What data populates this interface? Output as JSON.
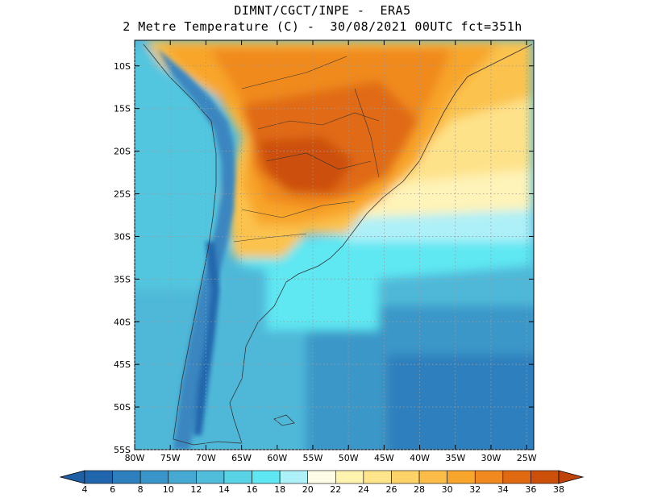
{
  "title_line1": "DIMNT/CGCT/INPE -  ERA5",
  "title_line2": "2 Metre Temperature (C) -  30/08/2021 00UTC fct=351h",
  "map": {
    "lat_labels": [
      "10S",
      "15S",
      "20S",
      "25S",
      "30S",
      "35S",
      "40S",
      "45S",
      "50S",
      "55S"
    ],
    "lat_values": [
      -10,
      -15,
      -20,
      -25,
      -30,
      -35,
      -40,
      -45,
      -50,
      -55
    ],
    "lon_labels": [
      "80W",
      "75W",
      "70W",
      "65W",
      "60W",
      "55W",
      "50W",
      "45W",
      "40W",
      "35W",
      "30W",
      "25W"
    ],
    "lon_values": [
      -80,
      -75,
      -70,
      -65,
      -60,
      -55,
      -50,
      -45,
      -40,
      -35,
      -30,
      -25
    ],
    "lat_range": [
      -55,
      -7
    ],
    "lon_range": [
      -80,
      -24
    ],
    "grid": "dotted"
  },
  "colorbar": {
    "labels": [
      "4",
      "6",
      "8",
      "10",
      "12",
      "14",
      "16",
      "18",
      "20",
      "22",
      "24",
      "26",
      "28",
      "30",
      "32",
      "34",
      "36",
      "38"
    ],
    "colors": [
      "#2166ac",
      "#2e7fbe",
      "#3a95c8",
      "#46a9d2",
      "#52bddb",
      "#5ad3e6",
      "#5ee7f2",
      "#aef0f8",
      "#fefbe6",
      "#fff3b0",
      "#fee48a",
      "#fdd268",
      "#fbbc48",
      "#f8a52c",
      "#f08a1e",
      "#e06a12",
      "#cc500a"
    ],
    "low_color": "#1f5fa3",
    "high_color": "#c0440a"
  }
}
